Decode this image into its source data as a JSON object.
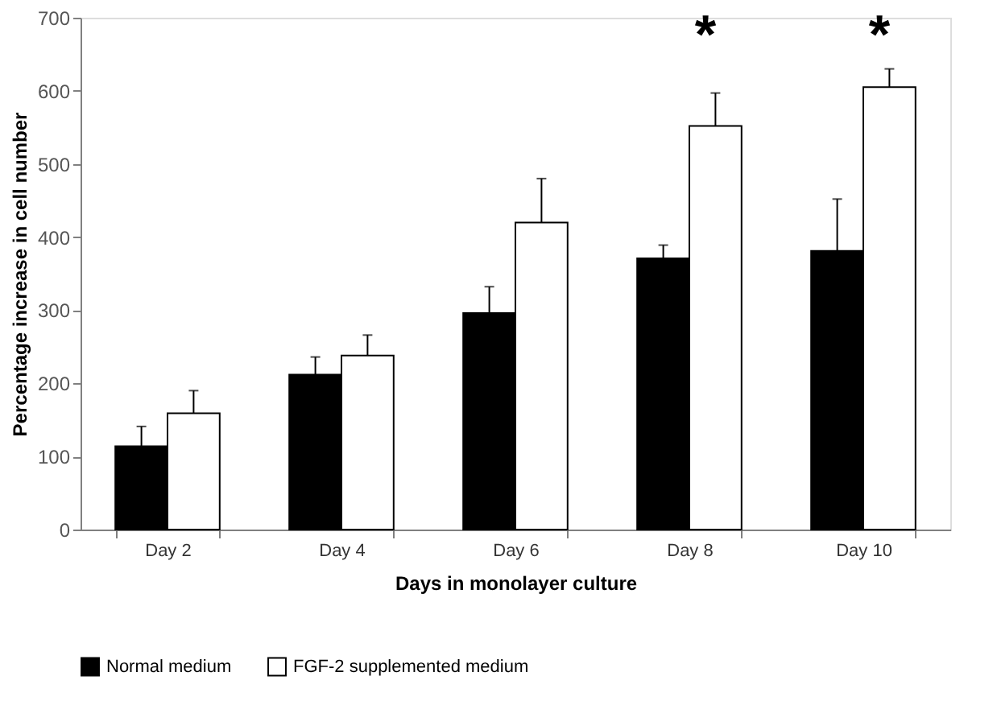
{
  "chart_data": {
    "type": "bar",
    "xlabel": "Days in monolayer culture",
    "ylabel": "Percentage increase in cell number",
    "categories": [
      "Day 2",
      "Day 4",
      "Day 6",
      "Day 8",
      "Day 10"
    ],
    "series": [
      {
        "name": "Normal medium",
        "color": "#000000",
        "values": [
          114,
          212,
          296,
          371,
          381
        ],
        "errors": [
          [
            114,
            141
          ],
          [
            212,
            236
          ],
          [
            296,
            332
          ],
          [
            371,
            389
          ],
          [
            381,
            452
          ]
        ]
      },
      {
        "name": "FGF-2 supplemented medium",
        "color": "#ffffff",
        "values": [
          159,
          238,
          420,
          552,
          605
        ],
        "errors": [
          [
            159,
            190
          ],
          [
            238,
            266
          ],
          [
            420,
            480
          ],
          [
            552,
            597
          ],
          [
            605,
            630
          ]
        ]
      }
    ],
    "ylim": [
      0,
      700
    ],
    "yticks": [
      0,
      100,
      200,
      300,
      400,
      500,
      600,
      700
    ],
    "grid": false,
    "legend": "bottom",
    "annotations": [
      "*",
      "*"
    ]
  }
}
